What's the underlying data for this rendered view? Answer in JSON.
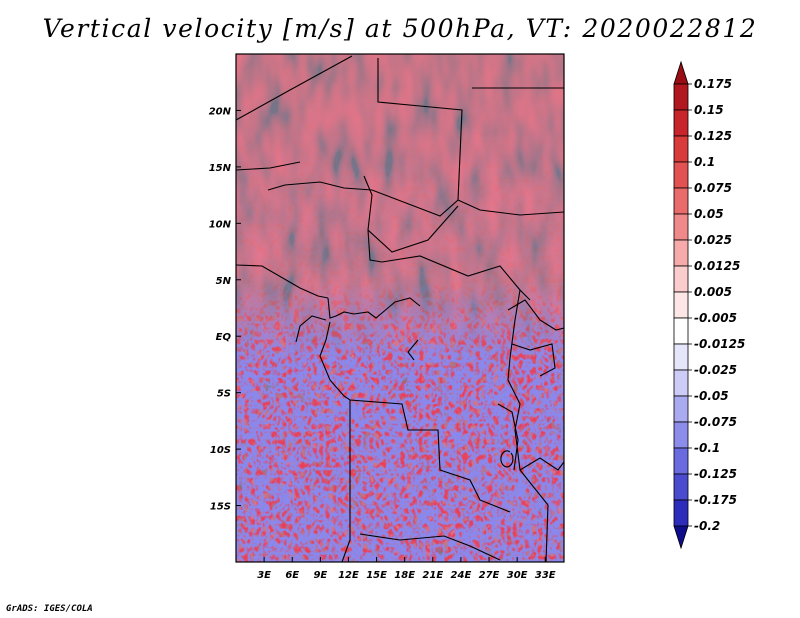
{
  "title": "Vertical velocity [m/s] at 500hPa, VT: 2020022812",
  "footer": "GrADS: IGES/COLA",
  "map": {
    "region": "Central Africa",
    "lon_range": [
      0,
      35
    ],
    "lat_range": [
      -20,
      25
    ],
    "lon_ticks": [
      "3E",
      "6E",
      "9E",
      "12E",
      "15E",
      "18E",
      "21E",
      "24E",
      "27E",
      "30E",
      "33E"
    ],
    "lat_ticks": [
      "20N",
      "15N",
      "10N",
      "5N",
      "EQ",
      "5S",
      "10S",
      "15S"
    ],
    "field": "vertical velocity"
  },
  "colorbar": {
    "labels": [
      "0.175",
      "0.15",
      "0.125",
      "0.1",
      "0.075",
      "0.05",
      "0.025",
      "0.0125",
      "0.005",
      "-0.005",
      "-0.0125",
      "-0.025",
      "-0.05",
      "-0.075",
      "-0.1",
      "-0.125",
      "-0.175",
      "-0.2"
    ],
    "colors": [
      "#b0171f",
      "#c8242c",
      "#d93b3b",
      "#e35252",
      "#ea6b6b",
      "#f08a8a",
      "#f6aaaa",
      "#fbcccc",
      "#fde6e6",
      "#ffffff",
      "#e6e6fb",
      "#ccccf7",
      "#aaaaf0",
      "#8c8ceb",
      "#6b6be0",
      "#4b4bd0",
      "#2d2dbc",
      "#1414a0"
    ],
    "top_arrow_color": "#9b0d14",
    "bottom_arrow_color": "#0e0e8c"
  }
}
